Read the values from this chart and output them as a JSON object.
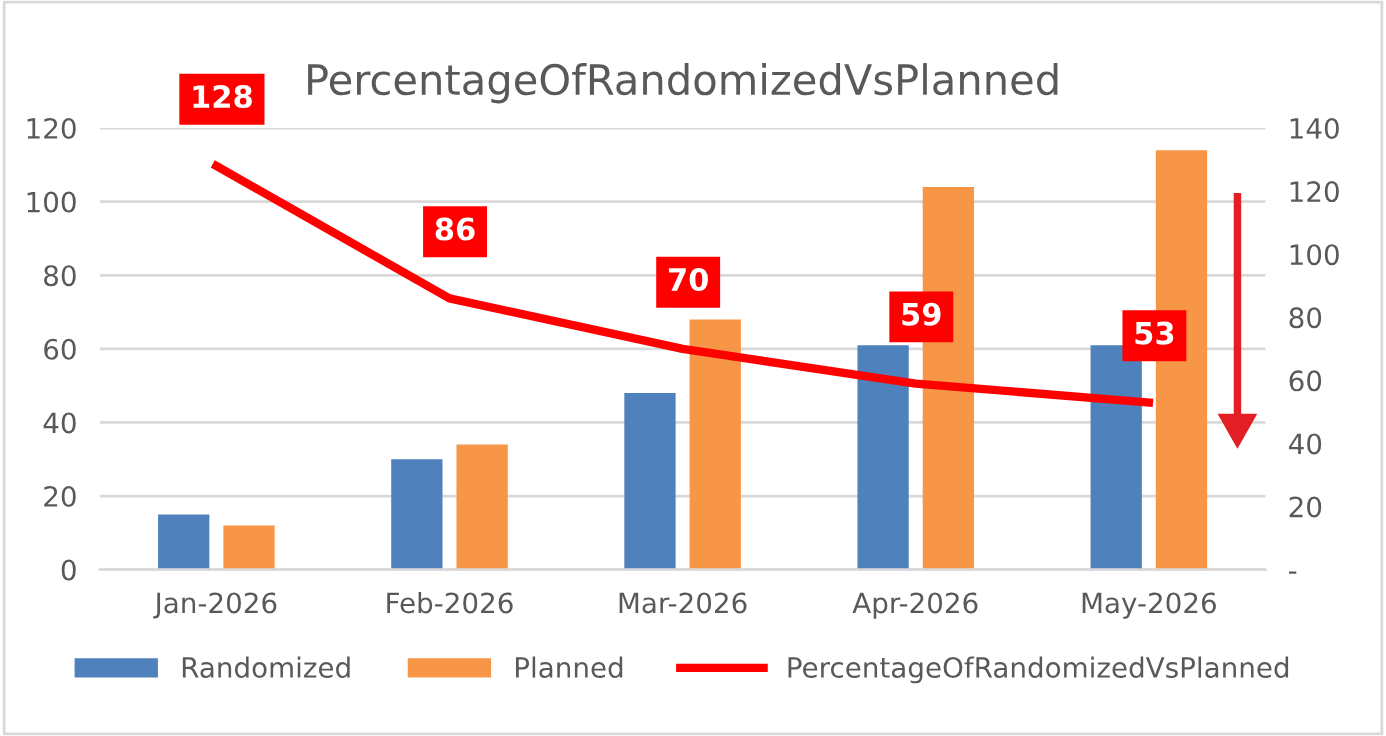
{
  "chart_data": {
    "type": "bar",
    "title": "PercentageOfRandomizedVsPlanned",
    "categories": [
      "Jan-2026",
      "Feb-2026",
      "Mar-2026",
      "Apr-2026",
      "May-2026"
    ],
    "series": [
      {
        "name": "Randomized",
        "color": "#4f81bd",
        "values": [
          15,
          30,
          48,
          61,
          61
        ]
      },
      {
        "name": "Planned",
        "color": "#f79646",
        "values": [
          12,
          34,
          68,
          104,
          114
        ]
      },
      {
        "name": "PercentageOfRandomizedVsPlanned",
        "type": "line",
        "axis": "y2",
        "color": "#ff0000",
        "values": [
          128,
          86,
          70,
          59,
          53
        ],
        "data_labels": true
      }
    ],
    "ylim": [
      0,
      120
    ],
    "yticks": [
      0,
      20,
      40,
      60,
      80,
      100,
      120
    ],
    "y2lim": [
      0,
      140
    ],
    "y2ticks": [
      {
        "value": 0,
        "label": "-"
      },
      20,
      40,
      60,
      80,
      100,
      120,
      140
    ],
    "grid": "y",
    "legend": "bottom"
  }
}
